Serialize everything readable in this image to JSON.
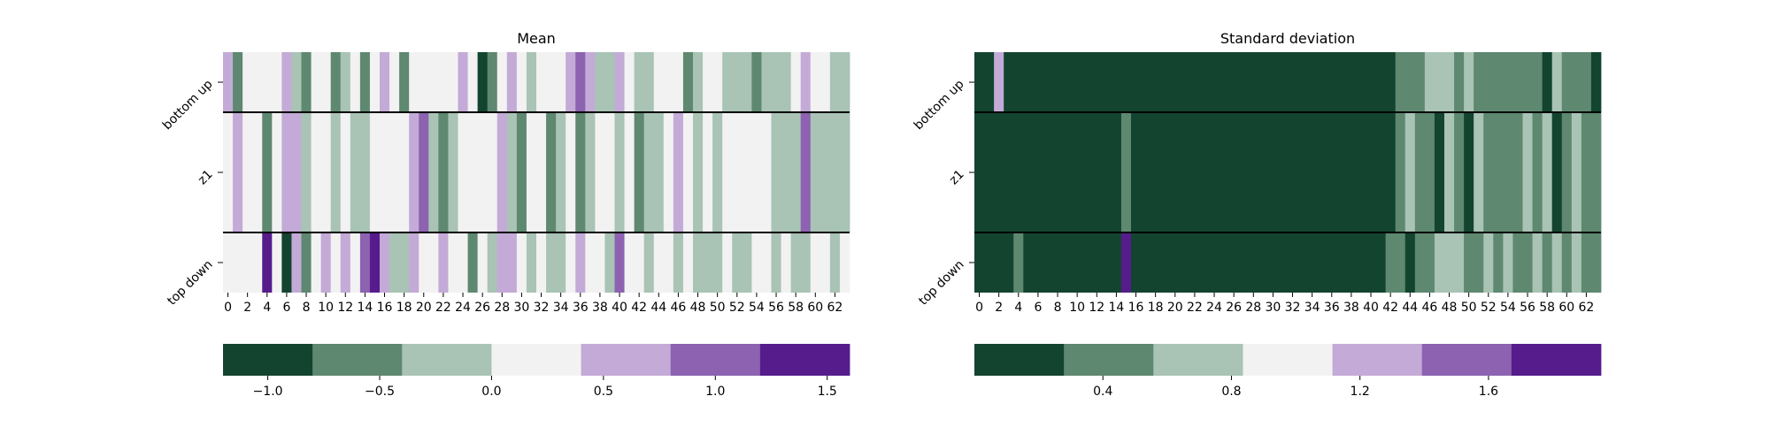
{
  "palette": [
    "#134430",
    "#5e8870",
    "#a9c3b5",
    "#f2f2f2",
    "#c4aad7",
    "#8c62b1",
    "#561c8c"
  ],
  "chart_data": [
    {
      "type": "heatmap",
      "title": "Mean",
      "rows": [
        "bottom up",
        "z1",
        "top down"
      ],
      "columns": 64,
      "xticks": [
        0,
        2,
        4,
        6,
        8,
        10,
        12,
        14,
        16,
        18,
        20,
        22,
        24,
        26,
        28,
        30,
        32,
        34,
        36,
        38,
        40,
        42,
        44,
        46,
        48,
        50,
        52,
        54,
        56,
        58,
        60,
        62
      ],
      "row_heights": [
        1,
        2,
        1
      ],
      "colorbar": {
        "ticks": [
          -1.0,
          -0.5,
          0.0,
          0.5,
          1.0,
          1.5
        ],
        "tick_labels": [
          "−1.0",
          "−0.5",
          "0.0",
          "0.5",
          "1.0",
          "1.5"
        ],
        "range": [
          -1.2,
          1.6
        ]
      },
      "values": [
        [
          0.5,
          -0.5,
          0.0,
          0.0,
          0.0,
          0.0,
          0.5,
          -0.3,
          -0.5,
          0.0,
          0.0,
          -0.5,
          -0.3,
          0.0,
          -0.5,
          0.0,
          0.5,
          0.0,
          -0.5,
          0.0,
          0.0,
          0.0,
          0.0,
          0.0,
          0.5,
          0.0,
          -1.0,
          -0.5,
          0.0,
          0.5,
          0.0,
          -0.3,
          0.0,
          0.0,
          0.0,
          0.5,
          1.0,
          0.5,
          -0.3,
          -0.3,
          0.5,
          0.0,
          -0.3,
          -0.3,
          0.0,
          0.0,
          0.0,
          -0.5,
          -0.3,
          0.0,
          0.0,
          -0.3,
          -0.3,
          -0.3,
          -0.5,
          -0.3,
          -0.3,
          -0.3,
          0.0,
          0.5,
          0.0,
          0.0,
          -0.3,
          -0.3
        ],
        [
          0.0,
          0.5,
          0.0,
          0.0,
          -0.5,
          0.0,
          0.5,
          0.5,
          -0.3,
          0.0,
          0.0,
          -0.3,
          0.0,
          -0.3,
          -0.3,
          0.0,
          0.0,
          0.0,
          0.0,
          0.5,
          1.0,
          -0.3,
          -0.5,
          -0.3,
          0.0,
          0.0,
          0.0,
          0.0,
          0.5,
          -0.3,
          -0.5,
          0.0,
          0.0,
          -0.5,
          -0.3,
          0.0,
          -0.5,
          -0.3,
          0.0,
          0.0,
          -0.3,
          0.0,
          -0.5,
          -0.3,
          -0.3,
          0.0,
          0.5,
          0.0,
          -0.3,
          0.0,
          -0.3,
          0.0,
          0.0,
          0.0,
          0.0,
          0.0,
          -0.3,
          -0.3,
          -0.3,
          1.0,
          -0.3,
          -0.3,
          -0.3,
          -0.3
        ],
        [
          0.0,
          0.0,
          0.0,
          0.0,
          1.5,
          0.0,
          -1.0,
          0.5,
          -0.5,
          0.0,
          0.5,
          0.0,
          0.5,
          0.0,
          1.0,
          1.5,
          0.5,
          -0.3,
          -0.3,
          0.5,
          0.0,
          0.0,
          0.5,
          0.0,
          0.0,
          -0.5,
          0.0,
          -0.3,
          0.5,
          0.5,
          0.0,
          -0.3,
          0.0,
          -0.3,
          -0.3,
          0.0,
          0.5,
          0.0,
          0.0,
          -0.3,
          1.0,
          0.0,
          0.0,
          -0.3,
          0.0,
          0.0,
          -0.3,
          0.0,
          -0.3,
          -0.3,
          -0.3,
          0.0,
          -0.3,
          -0.3,
          0.0,
          0.0,
          -0.3,
          0.0,
          -0.3,
          -0.3,
          0.0,
          0.0,
          -0.3,
          0.0
        ]
      ]
    },
    {
      "type": "heatmap",
      "title": "Standard deviation",
      "rows": [
        "bottom up",
        "z1",
        "top down"
      ],
      "columns": 64,
      "xticks": [
        0,
        2,
        4,
        6,
        8,
        10,
        12,
        14,
        16,
        18,
        20,
        22,
        24,
        26,
        28,
        30,
        32,
        34,
        36,
        38,
        40,
        42,
        44,
        46,
        48,
        50,
        52,
        54,
        56,
        58,
        60,
        62
      ],
      "row_heights": [
        1,
        2,
        1
      ],
      "colorbar": {
        "ticks": [
          0.4,
          0.8,
          1.2,
          1.6
        ],
        "tick_labels": [
          "0.4",
          "0.8",
          "1.2",
          "1.6"
        ],
        "range": [
          0.0,
          1.95
        ]
      },
      "values": [
        [
          0.1,
          0.1,
          1.2,
          0.1,
          0.1,
          0.1,
          0.1,
          0.1,
          0.1,
          0.1,
          0.1,
          0.1,
          0.1,
          0.1,
          0.1,
          0.1,
          0.1,
          0.1,
          0.1,
          0.1,
          0.1,
          0.1,
          0.1,
          0.1,
          0.1,
          0.1,
          0.1,
          0.1,
          0.1,
          0.1,
          0.1,
          0.1,
          0.1,
          0.1,
          0.1,
          0.1,
          0.1,
          0.1,
          0.1,
          0.1,
          0.1,
          0.1,
          0.1,
          0.4,
          0.4,
          0.4,
          0.7,
          0.7,
          0.7,
          0.4,
          0.7,
          0.4,
          0.4,
          0.4,
          0.4,
          0.4,
          0.4,
          0.4,
          0.1,
          0.7,
          0.4,
          0.4,
          0.4,
          0.1
        ],
        [
          0.1,
          0.1,
          0.1,
          0.1,
          0.1,
          0.1,
          0.1,
          0.1,
          0.1,
          0.1,
          0.1,
          0.1,
          0.1,
          0.1,
          0.1,
          0.4,
          0.1,
          0.1,
          0.1,
          0.1,
          0.1,
          0.1,
          0.1,
          0.1,
          0.1,
          0.1,
          0.1,
          0.1,
          0.1,
          0.1,
          0.1,
          0.1,
          0.1,
          0.1,
          0.1,
          0.1,
          0.1,
          0.1,
          0.1,
          0.1,
          0.1,
          0.1,
          0.1,
          0.4,
          0.7,
          0.4,
          0.4,
          0.1,
          0.7,
          0.4,
          0.1,
          0.7,
          0.4,
          0.4,
          0.4,
          0.4,
          0.7,
          0.4,
          0.7,
          0.1,
          0.4,
          0.7,
          0.4,
          0.4
        ],
        [
          0.1,
          0.1,
          0.1,
          0.1,
          0.4,
          0.1,
          0.1,
          0.1,
          0.1,
          0.1,
          0.1,
          0.1,
          0.1,
          0.1,
          0.1,
          1.9,
          0.1,
          0.1,
          0.1,
          0.1,
          0.1,
          0.1,
          0.1,
          0.1,
          0.1,
          0.1,
          0.1,
          0.1,
          0.1,
          0.1,
          0.1,
          0.1,
          0.1,
          0.1,
          0.1,
          0.1,
          0.1,
          0.1,
          0.1,
          0.1,
          0.1,
          0.1,
          0.4,
          0.4,
          0.1,
          0.4,
          0.4,
          0.7,
          0.7,
          0.7,
          0.4,
          0.4,
          0.7,
          0.4,
          0.7,
          0.4,
          0.4,
          0.7,
          0.4,
          0.7,
          0.4,
          0.7,
          0.4,
          0.4
        ]
      ]
    }
  ]
}
